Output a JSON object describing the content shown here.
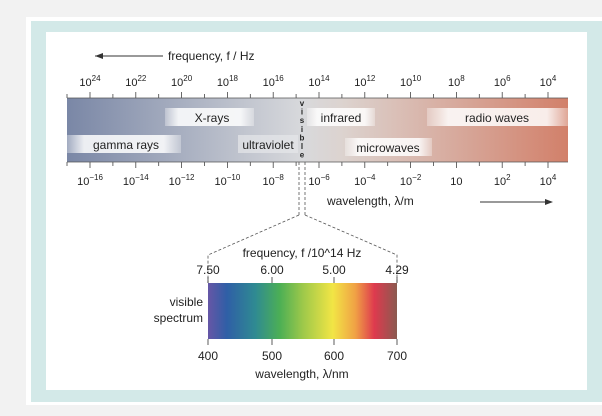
{
  "top_axis": {
    "label": "frequency, f / Hz",
    "ticks": [
      "10^24",
      "10^22",
      "10^20",
      "10^18",
      "10^16",
      "10^14",
      "10^12",
      "10^10",
      "10^8",
      "10^6",
      "10^4"
    ]
  },
  "bottom_axis": {
    "label": "wavelength, λ/m",
    "ticks": [
      "10^-16",
      "10^-14",
      "10^-12",
      "10^-10",
      "10^-8",
      "10^-6",
      "10^-4",
      "10^-2",
      "10",
      "10^2",
      "10^4"
    ]
  },
  "regions": {
    "xrays": "X-rays",
    "gamma": "gamma rays",
    "uv": "ultraviolet",
    "visible": "visible",
    "infrared": "infrared",
    "microwaves": "microwaves",
    "radio": "radio waves"
  },
  "visible_detail": {
    "title": "visible spectrum",
    "freq_label": "frequency, f /10^14 Hz",
    "freq_ticks": [
      "7.50",
      "6.00",
      "5.00",
      "4.29"
    ],
    "wl_label": "wavelength, λ/nm",
    "wl_ticks": [
      "400",
      "500",
      "600",
      "700"
    ]
  },
  "colors": {
    "band_left": "#7a87a6",
    "band_mid": "#d9dadc",
    "band_right": "#d2806a",
    "frame": "#d3e9e8"
  }
}
